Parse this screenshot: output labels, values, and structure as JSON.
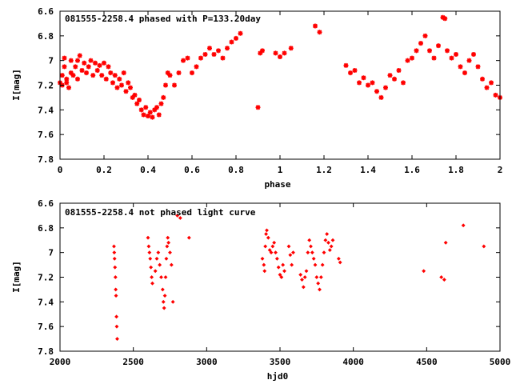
{
  "chart_data": [
    {
      "type": "scatter",
      "title": "081555-2258.4 phased with P=133.20day",
      "xlabel": "phase",
      "ylabel": "I[mag]",
      "xlim": [
        0,
        2
      ],
      "ylim": [
        7.8,
        6.6
      ],
      "y_inverted": true,
      "x_ticks": [
        "0",
        "0.2",
        "0.4",
        "0.6",
        "0.8",
        "1",
        "1.2",
        "1.4",
        "1.6",
        "1.8",
        "2"
      ],
      "y_ticks": [
        "6.6",
        "6.8",
        "7",
        "7.2",
        "7.4",
        "7.6",
        "7.8"
      ],
      "marker_color": "#ff0000",
      "marker": "star",
      "grid": false,
      "series": [
        {
          "points": [
            [
              0.0,
              7.18
            ],
            [
              0.01,
              7.12
            ],
            [
              0.01,
              7.2
            ],
            [
              0.02,
              7.05
            ],
            [
              0.02,
              6.98
            ],
            [
              0.03,
              7.15
            ],
            [
              0.03,
              7.18
            ],
            [
              0.04,
              7.22
            ],
            [
              0.05,
              7.1
            ],
            [
              0.05,
              7.0
            ],
            [
              0.06,
              7.12
            ],
            [
              0.07,
              7.05
            ],
            [
              0.08,
              7.0
            ],
            [
              0.08,
              7.15
            ],
            [
              0.09,
              6.96
            ],
            [
              0.1,
              7.08
            ],
            [
              0.11,
              7.02
            ],
            [
              0.12,
              7.1
            ],
            [
              0.13,
              7.05
            ],
            [
              0.14,
              7.0
            ],
            [
              0.15,
              7.12
            ],
            [
              0.16,
              7.02
            ],
            [
              0.17,
              7.08
            ],
            [
              0.18,
              7.04
            ],
            [
              0.19,
              7.12
            ],
            [
              0.2,
              7.02
            ],
            [
              0.21,
              7.15
            ],
            [
              0.22,
              7.05
            ],
            [
              0.23,
              7.1
            ],
            [
              0.24,
              7.18
            ],
            [
              0.25,
              7.12
            ],
            [
              0.26,
              7.22
            ],
            [
              0.27,
              7.15
            ],
            [
              0.28,
              7.2
            ],
            [
              0.29,
              7.1
            ],
            [
              0.3,
              7.25
            ],
            [
              0.31,
              7.18
            ],
            [
              0.32,
              7.22
            ],
            [
              0.33,
              7.3
            ],
            [
              0.34,
              7.28
            ],
            [
              0.35,
              7.35
            ],
            [
              0.36,
              7.32
            ],
            [
              0.37,
              7.4
            ],
            [
              0.38,
              7.44
            ],
            [
              0.39,
              7.38
            ],
            [
              0.4,
              7.45
            ],
            [
              0.41,
              7.42
            ],
            [
              0.42,
              7.46
            ],
            [
              0.43,
              7.4
            ],
            [
              0.44,
              7.38
            ],
            [
              0.45,
              7.44
            ],
            [
              0.46,
              7.35
            ],
            [
              0.47,
              7.3
            ],
            [
              0.48,
              7.2
            ],
            [
              0.49,
              7.1
            ],
            [
              0.5,
              7.12
            ],
            [
              0.52,
              7.2
            ],
            [
              0.54,
              7.1
            ],
            [
              0.56,
              7.0
            ],
            [
              0.58,
              6.98
            ],
            [
              0.6,
              7.1
            ],
            [
              0.62,
              7.05
            ],
            [
              0.64,
              6.98
            ],
            [
              0.66,
              6.95
            ],
            [
              0.68,
              6.9
            ],
            [
              0.7,
              6.95
            ],
            [
              0.72,
              6.92
            ],
            [
              0.74,
              6.98
            ],
            [
              0.76,
              6.9
            ],
            [
              0.78,
              6.85
            ],
            [
              0.8,
              6.82
            ],
            [
              0.82,
              6.78
            ],
            [
              0.9,
              7.38
            ],
            [
              0.91,
              6.94
            ],
            [
              0.92,
              6.92
            ],
            [
              0.98,
              6.94
            ],
            [
              1.0,
              6.97
            ],
            [
              1.02,
              6.94
            ],
            [
              1.05,
              6.9
            ],
            [
              1.16,
              6.72
            ],
            [
              1.18,
              6.77
            ],
            [
              1.3,
              7.04
            ],
            [
              1.32,
              7.1
            ],
            [
              1.34,
              7.08
            ],
            [
              1.36,
              7.18
            ],
            [
              1.38,
              7.14
            ],
            [
              1.4,
              7.2
            ],
            [
              1.42,
              7.18
            ],
            [
              1.44,
              7.25
            ],
            [
              1.46,
              7.3
            ],
            [
              1.48,
              7.22
            ],
            [
              1.5,
              7.12
            ],
            [
              1.52,
              7.15
            ],
            [
              1.54,
              7.08
            ],
            [
              1.56,
              7.18
            ],
            [
              1.58,
              7.0
            ],
            [
              1.6,
              6.98
            ],
            [
              1.62,
              6.92
            ],
            [
              1.64,
              6.86
            ],
            [
              1.66,
              6.8
            ],
            [
              1.68,
              6.92
            ],
            [
              1.7,
              6.98
            ],
            [
              1.72,
              6.88
            ],
            [
              1.74,
              6.65
            ],
            [
              1.75,
              6.66
            ],
            [
              1.76,
              6.92
            ],
            [
              1.78,
              6.98
            ],
            [
              1.8,
              6.95
            ],
            [
              1.82,
              7.05
            ],
            [
              1.84,
              7.1
            ],
            [
              1.86,
              7.0
            ],
            [
              1.88,
              6.95
            ],
            [
              1.9,
              7.05
            ],
            [
              1.92,
              7.15
            ],
            [
              1.94,
              7.22
            ],
            [
              1.96,
              7.18
            ],
            [
              1.98,
              7.28
            ],
            [
              2.0,
              7.3
            ]
          ]
        }
      ]
    },
    {
      "type": "scatter",
      "title": "081555-2258.4 not phased light curve",
      "xlabel": "hjd0",
      "ylabel": "I[mag]",
      "xlim": [
        2000,
        5000
      ],
      "ylim": [
        7.8,
        6.6
      ],
      "y_inverted": true,
      "x_ticks": [
        "2000",
        "2500",
        "3000",
        "3500",
        "4000",
        "4500",
        "5000"
      ],
      "y_ticks": [
        "6.6",
        "6.8",
        "7",
        "7.2",
        "7.4",
        "7.6",
        "7.8"
      ],
      "marker_color": "#ff0000",
      "marker": "diamond",
      "grid": false,
      "series": [
        {
          "points": [
            [
              2368,
              6.95
            ],
            [
              2370,
              7.0
            ],
            [
              2372,
              7.05
            ],
            [
              2375,
              7.12
            ],
            [
              2378,
              7.2
            ],
            [
              2380,
              7.3
            ],
            [
              2382,
              7.35
            ],
            [
              2385,
              7.52
            ],
            [
              2387,
              7.6
            ],
            [
              2390,
              7.7
            ],
            [
              2600,
              6.88
            ],
            [
              2605,
              6.95
            ],
            [
              2610,
              7.0
            ],
            [
              2615,
              7.05
            ],
            [
              2620,
              7.12
            ],
            [
              2625,
              7.2
            ],
            [
              2630,
              7.25
            ],
            [
              2650,
              7.15
            ],
            [
              2660,
              7.05
            ],
            [
              2670,
              7.0
            ],
            [
              2680,
              7.1
            ],
            [
              2690,
              7.2
            ],
            [
              2700,
              7.3
            ],
            [
              2705,
              7.4
            ],
            [
              2710,
              7.45
            ],
            [
              2715,
              7.35
            ],
            [
              2720,
              7.2
            ],
            [
              2725,
              7.05
            ],
            [
              2730,
              6.95
            ],
            [
              2735,
              6.88
            ],
            [
              2740,
              6.92
            ],
            [
              2750,
              7.0
            ],
            [
              2760,
              7.1
            ],
            [
              2770,
              7.4
            ],
            [
              2800,
              6.7
            ],
            [
              2820,
              6.72
            ],
            [
              2880,
              6.88
            ],
            [
              3380,
              7.05
            ],
            [
              3390,
              7.1
            ],
            [
              3395,
              7.15
            ],
            [
              3400,
              6.95
            ],
            [
              3405,
              6.85
            ],
            [
              3410,
              6.82
            ],
            [
              3420,
              6.88
            ],
            [
              3430,
              6.98
            ],
            [
              3440,
              7.0
            ],
            [
              3450,
              6.95
            ],
            [
              3460,
              6.92
            ],
            [
              3470,
              7.0
            ],
            [
              3480,
              7.05
            ],
            [
              3490,
              7.12
            ],
            [
              3500,
              7.18
            ],
            [
              3510,
              7.2
            ],
            [
              3520,
              7.1
            ],
            [
              3530,
              7.15
            ],
            [
              3560,
              6.95
            ],
            [
              3570,
              7.02
            ],
            [
              3580,
              7.1
            ],
            [
              3590,
              7.0
            ],
            [
              3640,
              7.18
            ],
            [
              3650,
              7.22
            ],
            [
              3660,
              7.28
            ],
            [
              3670,
              7.2
            ],
            [
              3680,
              7.15
            ],
            [
              3690,
              7.0
            ],
            [
              3700,
              6.9
            ],
            [
              3710,
              6.95
            ],
            [
              3720,
              7.0
            ],
            [
              3730,
              7.05
            ],
            [
              3740,
              7.1
            ],
            [
              3750,
              7.2
            ],
            [
              3760,
              7.25
            ],
            [
              3770,
              7.3
            ],
            [
              3780,
              7.2
            ],
            [
              3790,
              7.1
            ],
            [
              3800,
              7.0
            ],
            [
              3810,
              6.9
            ],
            [
              3820,
              6.85
            ],
            [
              3830,
              6.92
            ],
            [
              3840,
              6.98
            ],
            [
              3850,
              6.95
            ],
            [
              3860,
              6.9
            ],
            [
              3900,
              7.05
            ],
            [
              3910,
              7.08
            ],
            [
              4480,
              7.15
            ],
            [
              4600,
              7.2
            ],
            [
              4620,
              7.22
            ],
            [
              4630,
              6.92
            ],
            [
              4750,
              6.78
            ],
            [
              4890,
              6.95
            ]
          ]
        }
      ]
    }
  ]
}
